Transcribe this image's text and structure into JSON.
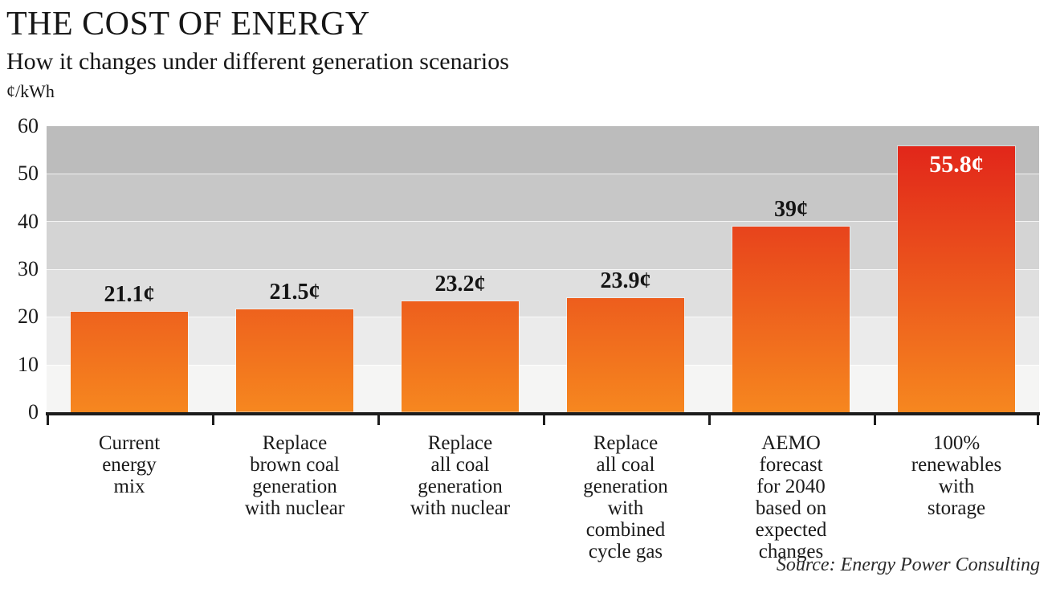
{
  "header": {
    "title": "THE COST OF ENERGY",
    "subtitle": "How it changes under different generation scenarios",
    "unit_label": "¢/kWh"
  },
  "source": "Source: Energy Power Consulting",
  "chart_data": {
    "type": "bar",
    "title": "THE COST OF ENERGY",
    "subtitle": "How it changes under different generation scenarios",
    "ylabel": "¢/kWh",
    "ylim": [
      0,
      60
    ],
    "yticks": [
      60,
      50,
      40,
      30,
      20,
      10,
      0
    ],
    "grid": "horizontal value bands, no vertical gridlines",
    "legend": "none",
    "categories": [
      "Current\nenergy\nmix",
      "Replace\nbrown coal\ngeneration\nwith nuclear",
      "Replace\nall coal\ngeneration\nwith nuclear",
      "Replace\nall coal\ngeneration\nwith\ncombined\ncycle gas",
      "AEMO\nforecast\nfor 2040\nbased on\nexpected\nchanges",
      "100%\nrenewables\nwith\nstorage"
    ],
    "values": [
      21.1,
      21.5,
      23.2,
      23.9,
      39,
      55.8
    ],
    "value_labels": [
      "21.1¢",
      "21.5¢",
      "23.2¢",
      "23.9¢",
      "39¢",
      "55.8¢"
    ],
    "value_label_inside": [
      false,
      false,
      false,
      false,
      false,
      true
    ]
  },
  "colors": {
    "bar_gradient_bottom": "#f6871f",
    "bar_gradient_top": "#e01f1a",
    "bands_top_to_bottom": [
      "#bcbcbc",
      "#c7c7c7",
      "#d4d4d4",
      "#dfdfdf",
      "#ebebeb",
      "#f5f5f4"
    ],
    "axis": "#1d1d1d",
    "value_label_outside_color": "#141414",
    "value_label_inside_color": "#ffffff"
  }
}
